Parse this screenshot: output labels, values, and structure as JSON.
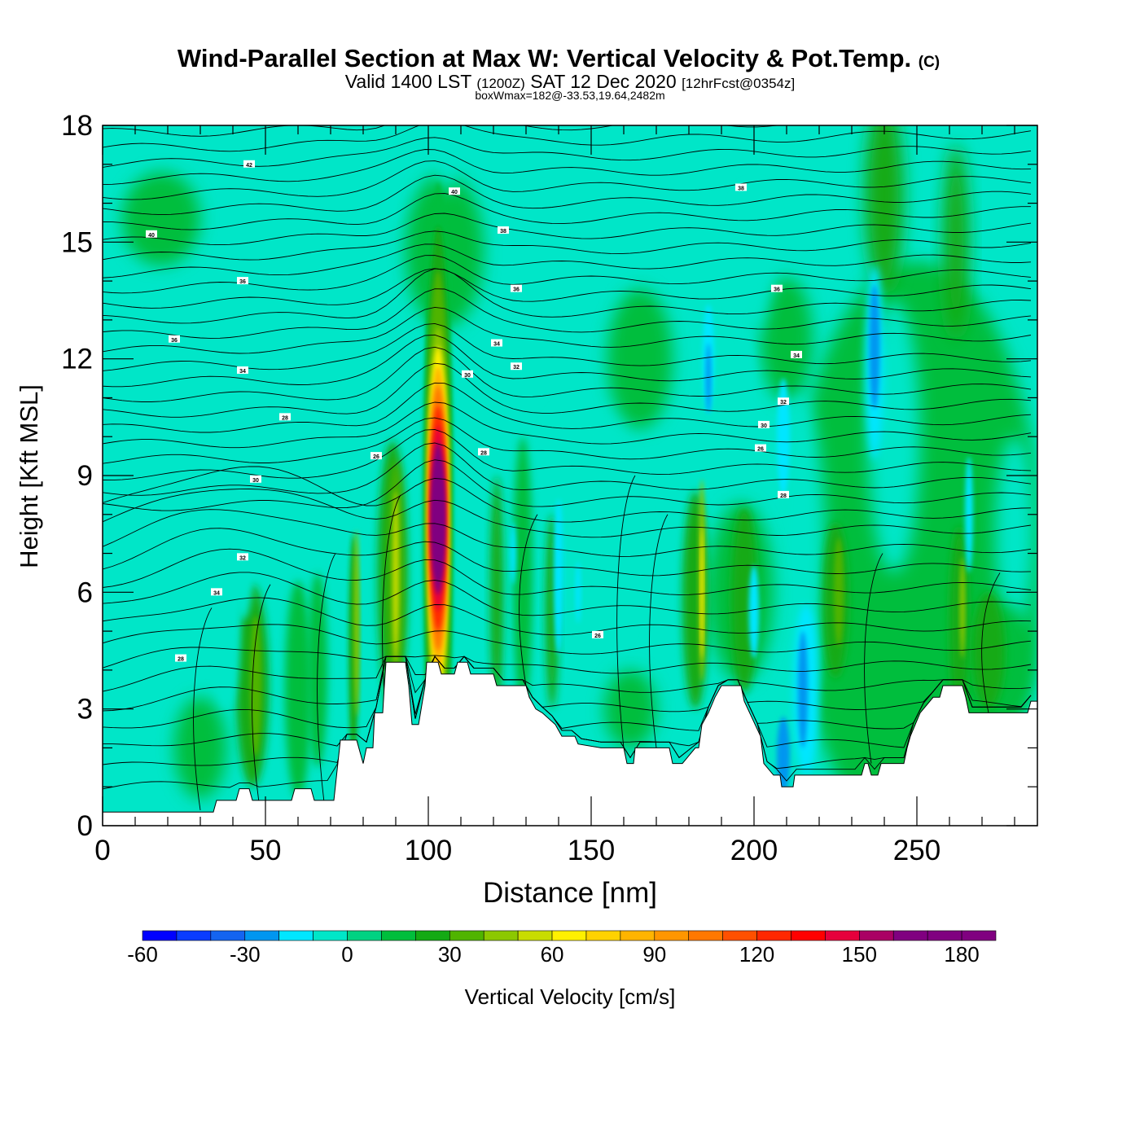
{
  "chart_data": {
    "type": "heatmap",
    "title": "Wind-Parallel Section at Max W: Vertical Velocity & Pot.Temp.",
    "title_suffix": "(C)",
    "subtitle": {
      "valid": "Valid 1400 LST",
      "utc": "(1200Z)",
      "date": "SAT 12 Dec 2020",
      "forecast": "[12hrFcst@0354z]"
    },
    "info_line": "boxWmax=182@-33.53,19.64,2482m",
    "xlabel": "Distance [nm]",
    "ylabel": "Height [Kft MSL]",
    "xlim": [
      0,
      287
    ],
    "ylim": [
      0,
      18
    ],
    "x_ticks": [
      "0",
      "50",
      "100",
      "150",
      "200",
      "250"
    ],
    "y_ticks": [
      "0",
      "3",
      "6",
      "9",
      "12",
      "15",
      "18"
    ],
    "colorbar": {
      "label": "Vertical Velocity [cm/s]",
      "min": -60,
      "max": 190,
      "step": 10,
      "tick_labels": [
        "-60",
        "-30",
        "0",
        "30",
        "60",
        "90",
        "120",
        "150",
        "180"
      ],
      "colors": [
        "#0000ff",
        "#0a3cff",
        "#1464f0",
        "#0096f0",
        "#00e6ff",
        "#00e6c8",
        "#00d282",
        "#00be3c",
        "#14aa14",
        "#50b400",
        "#8cc800",
        "#c8dc00",
        "#fff000",
        "#ffd200",
        "#ffb400",
        "#ff9600",
        "#ff7800",
        "#ff5000",
        "#ff2800",
        "#ff0000",
        "#e6003c",
        "#aa0064",
        "#800080"
      ]
    },
    "updraft_core": {
      "x": 103,
      "height_kft": 7.9,
      "max_w_cms": 182
    },
    "terrain_height_kft": [
      [
        0,
        0.35
      ],
      [
        20,
        0.35
      ],
      [
        34,
        0.35
      ],
      [
        35,
        0.65
      ],
      [
        41,
        0.65
      ],
      [
        42,
        0.95
      ],
      [
        45,
        0.95
      ],
      [
        46,
        0.65
      ],
      [
        58,
        0.65
      ],
      [
        59,
        0.95
      ],
      [
        64,
        0.95
      ],
      [
        65,
        0.65
      ],
      [
        71,
        0.65
      ],
      [
        73,
        2.2
      ],
      [
        78,
        2.2
      ],
      [
        80,
        1.6
      ],
      [
        81,
        2.0
      ],
      [
        83,
        2.0
      ],
      [
        83.5,
        2.9
      ],
      [
        86,
        2.9
      ],
      [
        86.5,
        3.6
      ],
      [
        87,
        4.2
      ],
      [
        93,
        4.2
      ],
      [
        94,
        3.6
      ],
      [
        95,
        2.6
      ],
      [
        97,
        2.6
      ],
      [
        99,
        3.6
      ],
      [
        99.5,
        4.2
      ],
      [
        103,
        4.2
      ],
      [
        104,
        3.9
      ],
      [
        108,
        3.9
      ],
      [
        109,
        4.2
      ],
      [
        112,
        4.2
      ],
      [
        113,
        3.9
      ],
      [
        120,
        3.9
      ],
      [
        121,
        3.6
      ],
      [
        130,
        3.6
      ],
      [
        131,
        3.3
      ],
      [
        133,
        3.0
      ],
      [
        135,
        2.9
      ],
      [
        139,
        2.6
      ],
      [
        141,
        2.3
      ],
      [
        145,
        2.3
      ],
      [
        146,
        2.1
      ],
      [
        153,
        2.0
      ],
      [
        160,
        2.0
      ],
      [
        161,
        1.6
      ],
      [
        163,
        1.6
      ],
      [
        163.5,
        2.0
      ],
      [
        174,
        2.0
      ],
      [
        175,
        1.6
      ],
      [
        178,
        1.6
      ],
      [
        179,
        1.7
      ],
      [
        181,
        1.9
      ],
      [
        182,
        2.0
      ],
      [
        183,
        2.0
      ],
      [
        184,
        2.6
      ],
      [
        186,
        2.9
      ],
      [
        188,
        3.3
      ],
      [
        190,
        3.6
      ],
      [
        196,
        3.6
      ],
      [
        197,
        3.2
      ],
      [
        202,
        2.3
      ],
      [
        203,
        1.6
      ],
      [
        206,
        1.3
      ],
      [
        208,
        1.3
      ],
      [
        208.5,
        1.0
      ],
      [
        212,
        1.0
      ],
      [
        212.5,
        1.3
      ],
      [
        233,
        1.3
      ],
      [
        234,
        1.6
      ],
      [
        235,
        1.6
      ],
      [
        236,
        1.3
      ],
      [
        238,
        1.3
      ],
      [
        239,
        1.6
      ],
      [
        246,
        1.6
      ],
      [
        247,
        2.0
      ],
      [
        248,
        2.3
      ],
      [
        251,
        2.9
      ],
      [
        252,
        3.0
      ],
      [
        255,
        3.3
      ],
      [
        257,
        3.3
      ],
      [
        258,
        3.6
      ],
      [
        264,
        3.6
      ],
      [
        265,
        3.3
      ],
      [
        266,
        2.9
      ],
      [
        284,
        2.9
      ],
      [
        285,
        3.2
      ],
      [
        287,
        3.2
      ]
    ],
    "isentrope_labels": [
      {
        "x": 45,
        "y": 17.0,
        "text": "42"
      },
      {
        "x": 108,
        "y": 16.3,
        "text": "40"
      },
      {
        "x": 196,
        "y": 16.4,
        "text": "38"
      },
      {
        "x": 15,
        "y": 15.2,
        "text": "40"
      },
      {
        "x": 123,
        "y": 15.3,
        "text": "38"
      },
      {
        "x": 43,
        "y": 14.0,
        "text": "36"
      },
      {
        "x": 127,
        "y": 13.8,
        "text": "36"
      },
      {
        "x": 207,
        "y": 13.8,
        "text": "36"
      },
      {
        "x": 22,
        "y": 12.5,
        "text": "36"
      },
      {
        "x": 121,
        "y": 12.4,
        "text": "34"
      },
      {
        "x": 213,
        "y": 12.1,
        "text": "34"
      },
      {
        "x": 43,
        "y": 11.7,
        "text": "34"
      },
      {
        "x": 127,
        "y": 11.8,
        "text": "32"
      },
      {
        "x": 112,
        "y": 11.6,
        "text": "30"
      },
      {
        "x": 209,
        "y": 10.9,
        "text": "32"
      },
      {
        "x": 56,
        "y": 10.5,
        "text": "28"
      },
      {
        "x": 203,
        "y": 10.3,
        "text": "30"
      },
      {
        "x": 117,
        "y": 9.6,
        "text": "28"
      },
      {
        "x": 202,
        "y": 9.7,
        "text": "26"
      },
      {
        "x": 84,
        "y": 9.5,
        "text": "26"
      },
      {
        "x": 47,
        "y": 8.9,
        "text": "30"
      },
      {
        "x": 209,
        "y": 8.5,
        "text": "28"
      },
      {
        "x": 43,
        "y": 6.9,
        "text": "32"
      },
      {
        "x": 35,
        "y": 6.0,
        "text": "34"
      },
      {
        "x": 152,
        "y": 4.9,
        "text": "26"
      },
      {
        "x": 24,
        "y": 4.3,
        "text": "28"
      }
    ]
  }
}
